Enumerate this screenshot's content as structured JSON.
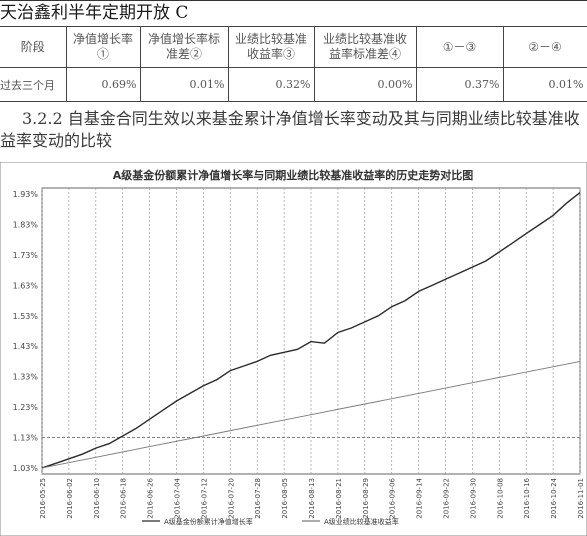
{
  "fund_title": "天治鑫利半年定期开放 C",
  "table": {
    "headers": [
      "阶段",
      "净值增长率①",
      "净值增长率标准差②",
      "业绩比较基准收益率③",
      "业绩比较基准收益率标准差④",
      "①－③",
      "②－④"
    ],
    "rows": [
      [
        "过去三个月",
        "0.69%",
        "0.01%",
        "0.32%",
        "0.00%",
        "0.37%",
        "0.01%"
      ]
    ]
  },
  "section_heading": "3.2.2 自基金合同生效以来基金累计净值增长率变动及其与同期业绩比较基准收益率变动的比较",
  "chart_data": {
    "type": "line",
    "title": "A级基金份额累计净值增长率与同期业绩比较基准收益率的历史走势对比图",
    "y_tick_labels": [
      "1.03%",
      "1.13%",
      "1.23%",
      "1.33%",
      "1.43%",
      "1.53%",
      "1.63%",
      "1.73%",
      "1.83%",
      "1.93%"
    ],
    "ylim": [
      1.01,
      1.95
    ],
    "x_tick_labels": [
      "2016-05-25",
      "2016-06-02",
      "2016-06-10",
      "2016-06-18",
      "2016-06-26",
      "2016-07-04",
      "2016-07-12",
      "2016-07-20",
      "2016-07-28",
      "2016-08-05",
      "2016-08-13",
      "2016-08-21",
      "2016-08-29",
      "2016-09-06",
      "2016-09-14",
      "2016-09-22",
      "2016-09-30",
      "2016-10-08",
      "2016-10-16",
      "2016-10-24",
      "2016-11-01"
    ],
    "series": [
      {
        "name": "A级基金份额累计净值增长率",
        "color": "#2a2a2a",
        "x": [
          0,
          0.5,
          1,
          1.5,
          2,
          2.5,
          3,
          3.5,
          4,
          4.5,
          5,
          5.5,
          6,
          6.5,
          7,
          7.5,
          8,
          8.5,
          9,
          9.5,
          10,
          10.5,
          11,
          11.5,
          12,
          12.5,
          13,
          13.5,
          14,
          14.5,
          15,
          15.5,
          16,
          16.5,
          17,
          17.5,
          18,
          18.5,
          19,
          19.5,
          20
        ],
        "y": [
          1.03,
          1.045,
          1.06,
          1.075,
          1.095,
          1.11,
          1.135,
          1.16,
          1.19,
          1.22,
          1.25,
          1.275,
          1.3,
          1.32,
          1.35,
          1.365,
          1.38,
          1.4,
          1.41,
          1.42,
          1.445,
          1.44,
          1.475,
          1.49,
          1.51,
          1.53,
          1.56,
          1.58,
          1.61,
          1.63,
          1.65,
          1.67,
          1.69,
          1.71,
          1.74,
          1.77,
          1.8,
          1.83,
          1.86,
          1.9,
          1.935
        ]
      },
      {
        "name": "A级业绩比较基准收益率",
        "color": "#7a7a7a",
        "x": [
          0,
          2,
          4,
          6,
          8,
          10,
          12,
          14,
          16,
          18,
          20
        ],
        "y": [
          1.03,
          1.065,
          1.1,
          1.135,
          1.17,
          1.205,
          1.24,
          1.275,
          1.31,
          1.345,
          1.38
        ]
      }
    ],
    "grid": true,
    "legend": "bottom"
  }
}
